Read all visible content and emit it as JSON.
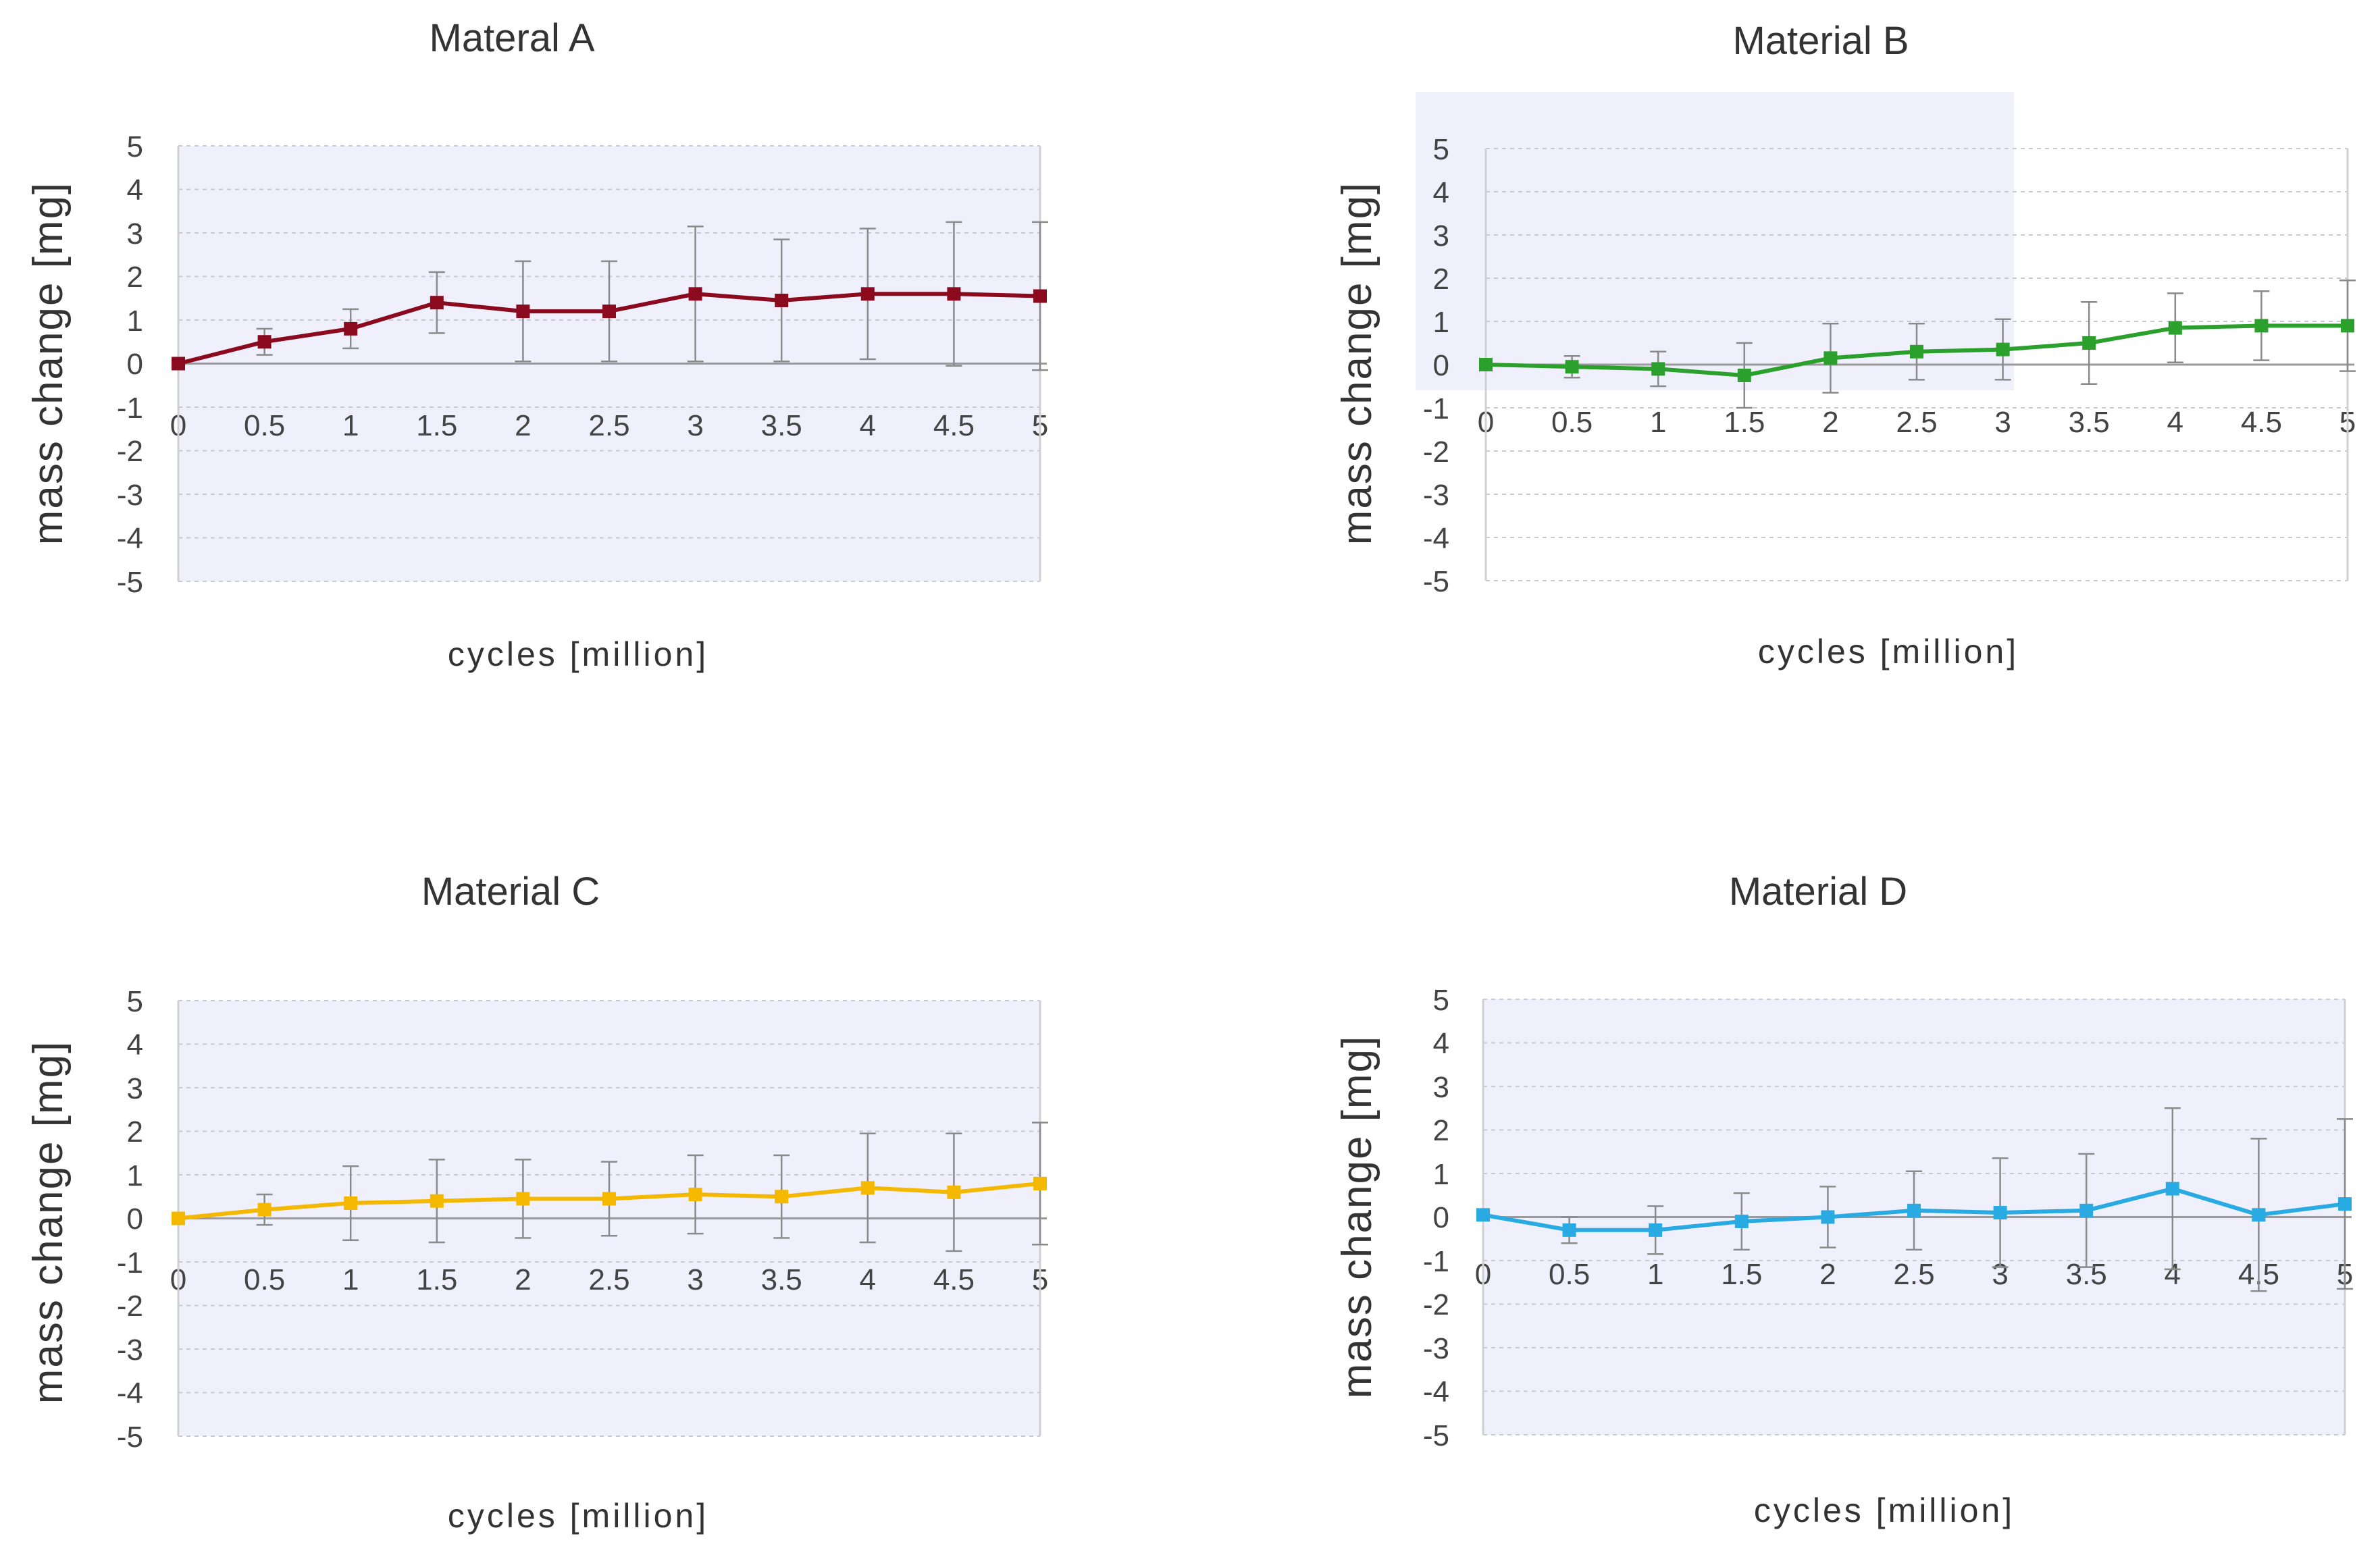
{
  "chart_data": [
    {
      "type": "line",
      "title": "Materal A",
      "xlabel": "cycles [million]",
      "ylabel": "mass change [mg]",
      "categories": [
        "0",
        "0.5",
        "1",
        "1.5",
        "2",
        "2.5",
        "3",
        "3.5",
        "4",
        "4.5",
        "5"
      ],
      "y_ticks": [
        "5",
        "4",
        "3",
        "2",
        "1",
        "0",
        "-1",
        "-2",
        "-3",
        "-4",
        "-5"
      ],
      "ylim": [
        -5,
        5
      ],
      "grid": true,
      "series": [
        {
          "name": "Materal A",
          "color": "#8b0a1e",
          "values": [
            0,
            0.5,
            0.8,
            1.4,
            1.2,
            1.2,
            1.6,
            1.45,
            1.6,
            1.6,
            1.55
          ],
          "error": [
            0,
            0.3,
            0.45,
            0.7,
            1.15,
            1.15,
            1.55,
            1.4,
            1.5,
            1.65,
            1.7
          ]
        }
      ]
    },
    {
      "type": "line",
      "title": "Material B",
      "xlabel": "cycles [million]",
      "ylabel": "mass change [mg]",
      "categories": [
        "0",
        "0.5",
        "1",
        "1.5",
        "2",
        "2.5",
        "3",
        "3.5",
        "4",
        "4.5",
        "5"
      ],
      "y_ticks": [
        "5",
        "4",
        "3",
        "2",
        "1",
        "0",
        "-1",
        "-2",
        "-3",
        "-4",
        "-5"
      ],
      "ylim": [
        -5,
        5
      ],
      "grid": true,
      "series": [
        {
          "name": "Material B",
          "color": "#2ca02c",
          "values": [
            0,
            -0.05,
            -0.1,
            -0.25,
            0.15,
            0.3,
            0.35,
            0.5,
            0.85,
            0.9,
            0.9
          ],
          "error": [
            0,
            0.25,
            0.4,
            0.75,
            0.8,
            0.65,
            0.7,
            0.95,
            0.8,
            0.8,
            1.05
          ]
        }
      ]
    },
    {
      "type": "line",
      "title": "Material C",
      "xlabel": "cycles [million]",
      "ylabel": "mass change [mg]",
      "categories": [
        "0",
        "0.5",
        "1",
        "1.5",
        "2",
        "2.5",
        "3",
        "3.5",
        "4",
        "4.5",
        "5"
      ],
      "y_ticks": [
        "5",
        "4",
        "3",
        "2",
        "1",
        "0",
        "-1",
        "-2",
        "-3",
        "-4",
        "-5"
      ],
      "ylim": [
        -5,
        5
      ],
      "grid": true,
      "series": [
        {
          "name": "Material C",
          "color": "#f5b800",
          "values": [
            0,
            0.2,
            0.35,
            0.4,
            0.45,
            0.45,
            0.55,
            0.5,
            0.7,
            0.6,
            0.8
          ],
          "error": [
            0,
            0.35,
            0.85,
            0.95,
            0.9,
            0.85,
            0.9,
            0.95,
            1.25,
            1.35,
            1.4
          ]
        }
      ]
    },
    {
      "type": "line",
      "title": "Material D",
      "xlabel": "cycles [million]",
      "ylabel": "mass change [mg]",
      "categories": [
        "0",
        "0.5",
        "1",
        "1.5",
        "2",
        "2.5",
        "3",
        "3.5",
        "4",
        "4.5",
        "5"
      ],
      "y_ticks": [
        "5",
        "4",
        "3",
        "2",
        "1",
        "0",
        "-1",
        "-2",
        "-3",
        "-4",
        "-5"
      ],
      "ylim": [
        -5,
        5
      ],
      "grid": true,
      "series": [
        {
          "name": "Material D",
          "color": "#29aae2",
          "values": [
            0.05,
            -0.3,
            -0.3,
            -0.1,
            0,
            0.15,
            0.1,
            0.15,
            0.65,
            0.05,
            0.3
          ],
          "error": [
            0,
            0.3,
            0.55,
            0.65,
            0.7,
            0.9,
            1.25,
            1.3,
            1.85,
            1.75,
            1.95
          ]
        }
      ]
    }
  ]
}
